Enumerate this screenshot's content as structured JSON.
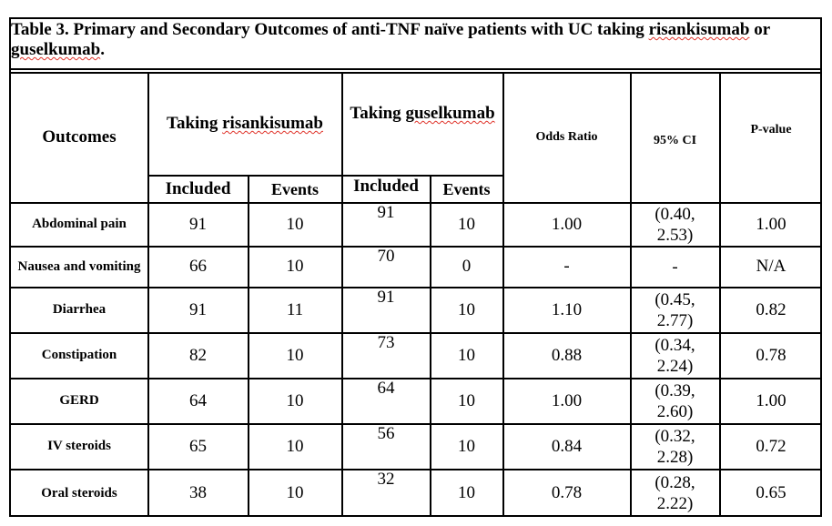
{
  "table": {
    "title_plain": "Table 3. Primary and Secondary Outcomes of anti-TNF naïve patients with UC taking ",
    "title_drug1": "risankisumab",
    "title_or": " or ",
    "title_drug2": "guselkumab",
    "title_end": ".",
    "headers": {
      "outcomes": "Outcomes",
      "group1_prefix": "Taking ",
      "group1_drug": "risankisumab",
      "group2_prefix": "Taking ",
      "group2_drug": "guselkumab",
      "odds_ratio": "Odds Ratio",
      "ci": "95% CI",
      "p_value": "P-value",
      "included": "Included",
      "events": "Events"
    },
    "rows": [
      {
        "outcome": "Abdominal pain",
        "r_included": "91",
        "r_events": "10",
        "g_included": "91",
        "g_events": "10",
        "or": "1.00",
        "ci_a": "(0.40,",
        "ci_b": "2.53)",
        "p": "1.00"
      },
      {
        "outcome": "Nausea and vomiting",
        "r_included": "66",
        "r_events": "10",
        "g_included": "70",
        "g_events": "0",
        "or": "-",
        "ci_a": "-",
        "ci_b": "",
        "p": "N/A"
      },
      {
        "outcome": "Diarrhea",
        "r_included": "91",
        "r_events": "11",
        "g_included": "91",
        "g_events": "10",
        "or": "1.10",
        "ci_a": "(0.45,",
        "ci_b": "2.77)",
        "p": "0.82"
      },
      {
        "outcome": "Constipation",
        "r_included": "82",
        "r_events": "10",
        "g_included": "73",
        "g_events": "10",
        "or": "0.88",
        "ci_a": "(0.34,",
        "ci_b": "2.24)",
        "p": "0.78"
      },
      {
        "outcome": "GERD",
        "r_included": "64",
        "r_events": "10",
        "g_included": "64",
        "g_events": "10",
        "or": "1.00",
        "ci_a": "(0.39,",
        "ci_b": "2.60)",
        "p": "1.00"
      },
      {
        "outcome": "IV steroids",
        "r_included": "65",
        "r_events": "10",
        "g_included": "56",
        "g_events": "10",
        "or": "0.84",
        "ci_a": "(0.32,",
        "ci_b": "2.28)",
        "p": "0.72"
      },
      {
        "outcome": "Oral steroids",
        "r_included": "38",
        "r_events": "10",
        "g_included": "32",
        "g_events": "10",
        "or": "0.78",
        "ci_a": "(0.28,",
        "ci_b": "2.22)",
        "p": "0.65"
      }
    ]
  }
}
